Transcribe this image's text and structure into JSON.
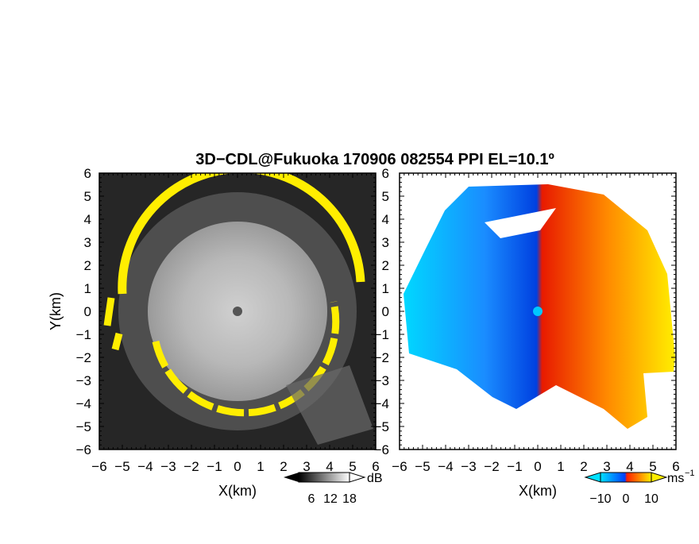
{
  "figure": {
    "title": "3D−CDL@Fukuoka 170906 082554 PPI EL=10.1º"
  },
  "chart_data": [
    {
      "type": "heatmap",
      "panel": "left",
      "quantity": "backscatter intensity",
      "xlabel": "X(km)",
      "ylabel": "Y(km)",
      "xlim": [
        -6,
        6
      ],
      "ylim": [
        -6,
        6
      ],
      "x_ticks": [
        "−6",
        "−5",
        "−4",
        "−3",
        "−2",
        "−1",
        "0",
        "1",
        "2",
        "3",
        "4",
        "5",
        "6"
      ],
      "y_ticks": [
        "6",
        "5",
        "4",
        "3",
        "2",
        "1",
        "0",
        "−1",
        "−2",
        "−3",
        "−4",
        "−5",
        "−6"
      ],
      "colormap": "grayscale",
      "background_color": "#262626",
      "highlight_color": "#ffee00",
      "highlight_ring_radius_km": 5.0,
      "inner_disk_radius_km": 3.9,
      "colorbar": {
        "unit": "dB",
        "ticks": [
          "6",
          "12",
          "18"
        ],
        "range": [
          0,
          21
        ]
      }
    },
    {
      "type": "heatmap",
      "panel": "right",
      "quantity": "radial velocity",
      "xlabel": "X(km)",
      "xlim": [
        -6,
        6
      ],
      "ylim": [
        -6,
        6
      ],
      "x_ticks": [
        "−6",
        "−5",
        "−4",
        "−3",
        "−2",
        "−1",
        "0",
        "1",
        "2",
        "3",
        "4",
        "5",
        "6"
      ],
      "y_ticks": [
        "6",
        "5",
        "4",
        "3",
        "2",
        "1",
        "0",
        "−1",
        "−2",
        "−3",
        "−4",
        "−5",
        "−6"
      ],
      "colormap": "blue-white-red",
      "negative_colors": [
        "#00c8ff",
        "#0055ee"
      ],
      "positive_colors": [
        "#ff3300",
        "#ffee00"
      ],
      "colorbar": {
        "unit": "ms",
        "unit_exponent": "−1",
        "ticks": [
          "−10",
          "0",
          "10"
        ],
        "range": [
          -13,
          13
        ]
      }
    }
  ]
}
